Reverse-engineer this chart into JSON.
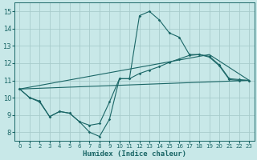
{
  "xlabel": "Humidex (Indice chaleur)",
  "background_color": "#c8e8e8",
  "grid_color": "#a8cccc",
  "line_color": "#1a6666",
  "xlim": [
    -0.5,
    23.5
  ],
  "ylim": [
    7.5,
    15.5
  ],
  "xticks": [
    0,
    1,
    2,
    3,
    4,
    5,
    6,
    7,
    8,
    9,
    10,
    11,
    12,
    13,
    14,
    15,
    16,
    17,
    18,
    19,
    20,
    21,
    22,
    23
  ],
  "yticks": [
    8,
    9,
    10,
    11,
    12,
    13,
    14,
    15
  ],
  "curve1_x": [
    0,
    1,
    2,
    3,
    4,
    5,
    6,
    7,
    8,
    9,
    10,
    11,
    12,
    13,
    14,
    15,
    16,
    17,
    18,
    19,
    20,
    21,
    22,
    23
  ],
  "curve1_y": [
    10.5,
    10.0,
    9.8,
    8.9,
    9.2,
    9.1,
    8.6,
    8.0,
    7.75,
    8.75,
    11.1,
    11.1,
    14.75,
    15.0,
    14.5,
    13.75,
    13.5,
    12.5,
    12.5,
    12.4,
    11.9,
    11.1,
    11.05,
    11.0
  ],
  "curve2_x": [
    0,
    1,
    2,
    3,
    4,
    5,
    6,
    7,
    8,
    9,
    10,
    11,
    12,
    13,
    14,
    15,
    16,
    17,
    18,
    19,
    20,
    21,
    22,
    23
  ],
  "curve2_y": [
    10.5,
    10.0,
    9.75,
    8.9,
    9.2,
    9.1,
    8.6,
    8.4,
    8.5,
    9.75,
    11.1,
    11.1,
    11.4,
    11.6,
    11.8,
    12.05,
    12.25,
    12.45,
    12.5,
    12.35,
    11.85,
    11.05,
    11.0,
    11.0
  ],
  "line3_x": [
    0,
    23
  ],
  "line3_y": [
    10.5,
    11.0
  ],
  "line4_x": [
    0,
    19,
    23
  ],
  "line4_y": [
    10.5,
    12.5,
    11.0
  ]
}
